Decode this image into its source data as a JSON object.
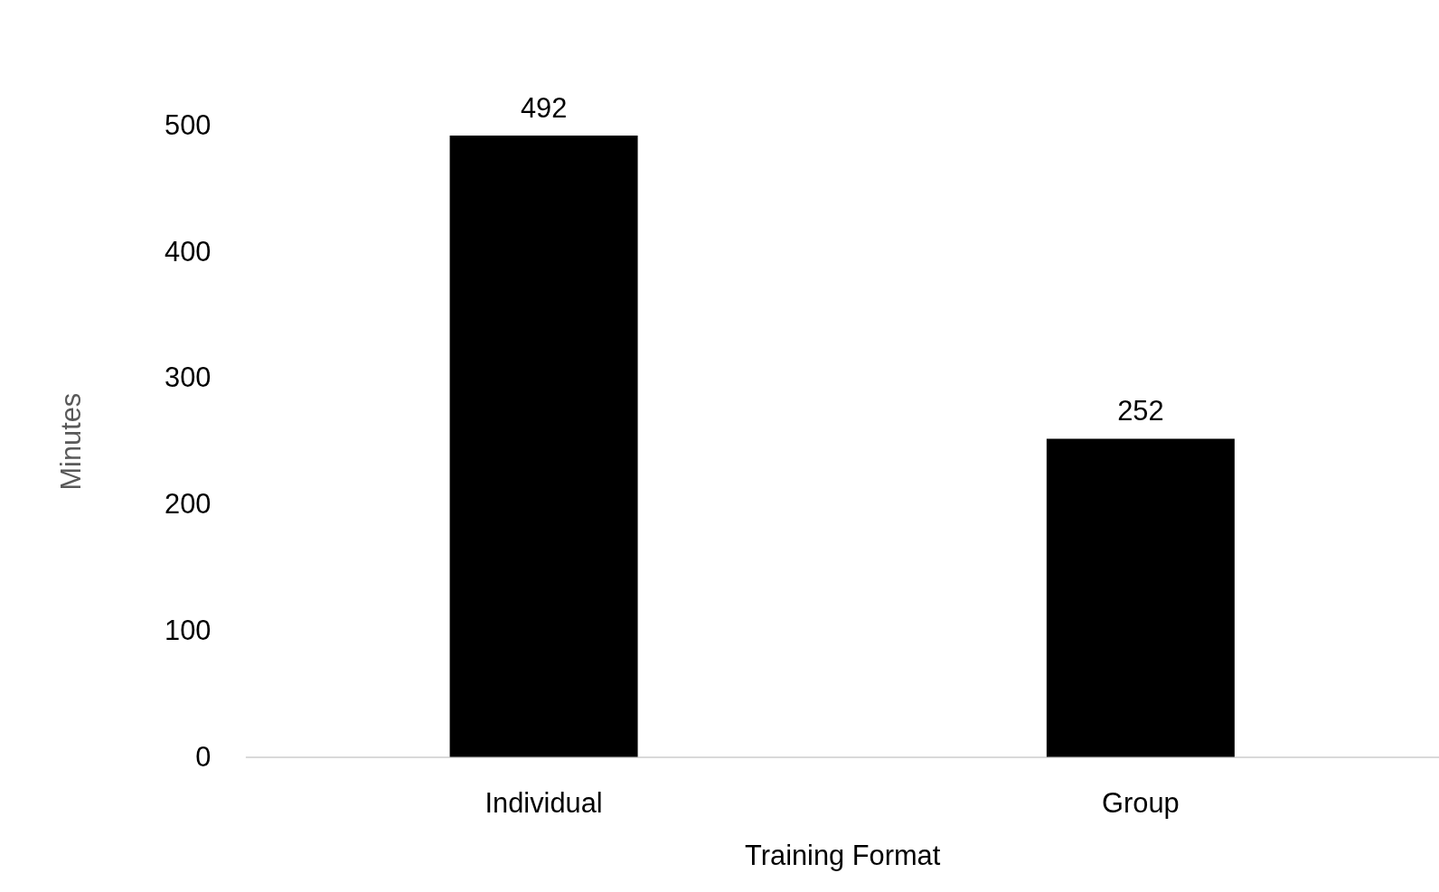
{
  "chart_data": {
    "type": "bar",
    "xlabel": "Training Format",
    "ylabel": "Minutes",
    "categories": [
      "Individual",
      "Group"
    ],
    "values": [
      492,
      252
    ],
    "color": "#000000",
    "ylim": [
      0,
      500
    ],
    "yticks": [
      0,
      100,
      200,
      300,
      400,
      500
    ],
    "data_labels": true,
    "grid": false
  }
}
